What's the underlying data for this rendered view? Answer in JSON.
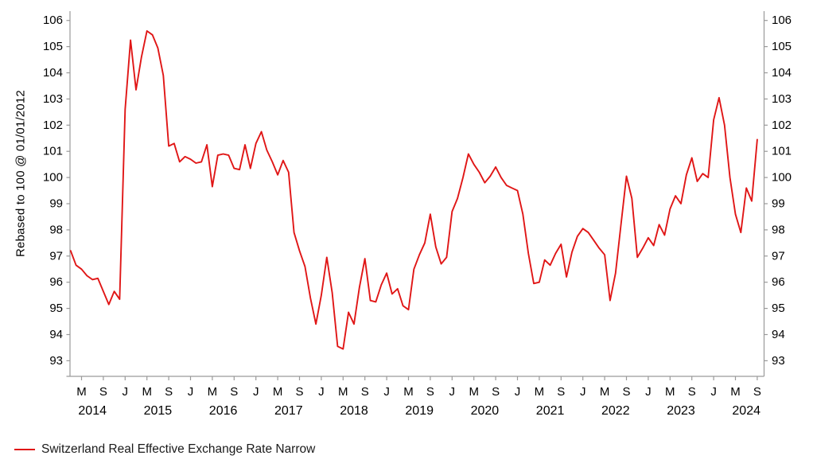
{
  "chart_data": {
    "type": "line",
    "title": "",
    "ylabel": "Rebased to 100 @ 01/01/2012",
    "xlabel": "",
    "grid": false,
    "legend_position": "bottom-left",
    "axis_color": "#9a9a9a",
    "ylim": [
      93,
      106
    ],
    "y_ticks": [
      93,
      94,
      95,
      96,
      97,
      98,
      99,
      100,
      101,
      102,
      103,
      104,
      105,
      106
    ],
    "y_ticks_mirrored_right": true,
    "x_start": "2014-03",
    "x_end": "2024-09",
    "x_frequency": "monthly",
    "x_tick_month_labels": [
      "M",
      "S",
      "J",
      "M",
      "S",
      "J",
      "M",
      "S",
      "J",
      "M",
      "S",
      "J",
      "M",
      "S",
      "J",
      "M",
      "S",
      "J",
      "M",
      "S",
      "J",
      "M",
      "S",
      "J",
      "M",
      "S",
      "J",
      "M",
      "S",
      "J",
      "M",
      "S"
    ],
    "x_year_labels": [
      "2014",
      "2015",
      "2016",
      "2017",
      "2018",
      "2019",
      "2020",
      "2021",
      "2022",
      "2023",
      "2024"
    ],
    "series": [
      {
        "name": "Switzerland Real Effective Exchange Rate Narrow",
        "color": "#e01616",
        "start": "2014-03",
        "values": [
          97.2,
          96.65,
          96.5,
          96.25,
          96.1,
          96.15,
          95.65,
          95.15,
          95.65,
          95.35,
          102.6,
          105.25,
          103.35,
          104.6,
          105.6,
          105.45,
          104.95,
          103.9,
          101.2,
          101.3,
          100.6,
          100.8,
          100.7,
          100.55,
          100.6,
          101.25,
          99.65,
          100.85,
          100.9,
          100.85,
          100.35,
          100.3,
          101.25,
          100.35,
          101.3,
          101.75,
          101.05,
          100.6,
          100.1,
          100.65,
          100.2,
          97.9,
          97.2,
          96.6,
          95.4,
          94.4,
          95.5,
          96.95,
          95.6,
          93.55,
          93.45,
          94.85,
          94.4,
          95.8,
          96.9,
          95.3,
          95.25,
          95.9,
          96.35,
          95.55,
          95.75,
          95.1,
          94.95,
          96.5,
          97.05,
          97.5,
          98.6,
          97.35,
          96.7,
          96.95,
          98.7,
          99.2,
          100.0,
          100.9,
          100.5,
          100.2,
          99.8,
          100.05,
          100.4,
          100.0,
          99.7,
          99.6,
          99.5,
          98.6,
          97.1,
          95.95,
          96.0,
          96.85,
          96.65,
          97.1,
          97.45,
          96.2,
          97.15,
          97.75,
          98.05,
          97.9,
          97.6,
          97.3,
          97.05,
          95.3,
          96.35,
          98.2,
          100.05,
          99.2,
          96.95,
          97.3,
          97.7,
          97.4,
          98.2,
          97.8,
          98.8,
          99.3,
          99.0,
          100.1,
          100.75,
          99.85,
          100.15,
          100.0,
          102.2,
          103.05,
          102.0,
          100.0,
          98.6,
          97.9,
          99.6,
          99.1,
          101.45
        ]
      }
    ]
  }
}
